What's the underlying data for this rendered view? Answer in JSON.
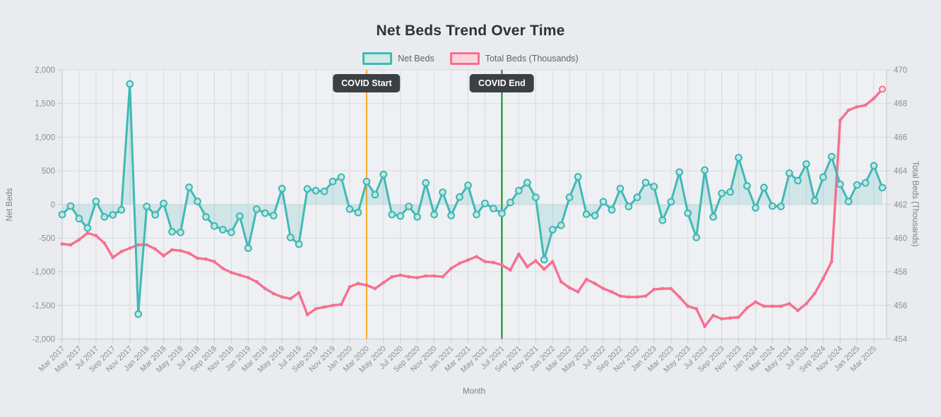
{
  "page": {
    "background": "#e9ebee",
    "plot_background": "#eef0f3",
    "grid_color": "#d7dade",
    "axis_color": "#c6cacd"
  },
  "chart_data": {
    "type": "line",
    "title": "Net Beds Trend Over Time",
    "xlabel": "Month",
    "legend_position": "top",
    "grid": true,
    "x": [
      "Mar 2017",
      "Apr 2017",
      "May 2017",
      "Jun 2017",
      "Jul 2017",
      "Aug 2017",
      "Sep 2017",
      "Oct 2017",
      "Nov 2017",
      "Dec 2017",
      "Jan 2018",
      "Feb 2018",
      "Mar 2018",
      "Apr 2018",
      "May 2018",
      "Jun 2018",
      "Jul 2018",
      "Aug 2018",
      "Sep 2018",
      "Oct 2018",
      "Nov 2018",
      "Dec 2018",
      "Jan 2019",
      "Feb 2019",
      "Mar 2019",
      "Apr 2019",
      "May 2019",
      "Jun 2019",
      "Jul 2019",
      "Aug 2019",
      "Sep 2019",
      "Oct 2019",
      "Nov 2019",
      "Dec 2019",
      "Jan 2020",
      "Feb 2020",
      "Mar 2020",
      "Apr 2020",
      "May 2020",
      "Jun 2020",
      "Jul 2020",
      "Aug 2020",
      "Sep 2020",
      "Oct 2020",
      "Nov 2020",
      "Dec 2020",
      "Jan 2021",
      "Feb 2021",
      "Mar 2021",
      "Apr 2021",
      "May 2021",
      "Jun 2021",
      "Jul 2021",
      "Aug 2021",
      "Sep 2021",
      "Oct 2021",
      "Nov 2021",
      "Dec 2021",
      "Jan 2022",
      "Feb 2022",
      "Mar 2022",
      "Apr 2022",
      "May 2022",
      "Jun 2022",
      "Jul 2022",
      "Aug 2022",
      "Sep 2022",
      "Oct 2022",
      "Nov 2022",
      "Dec 2022",
      "Jan 2023",
      "Feb 2023",
      "Mar 2023",
      "Apr 2023",
      "May 2023",
      "Jun 2023",
      "Jul 2023",
      "Aug 2023",
      "Sep 2023",
      "Oct 2023",
      "Nov 2023",
      "Dec 2023",
      "Jan 2024",
      "Feb 2024",
      "Mar 2024",
      "Apr 2024",
      "May 2024",
      "Jun 2024",
      "Jul 2024",
      "Aug 2024",
      "Sep 2024",
      "Oct 2024",
      "Nov 2024",
      "Dec 2024",
      "Jan 2025",
      "Feb 2025",
      "Mar 2025",
      "Apr 2025"
    ],
    "x_tick_every": 2,
    "series": [
      {
        "name": "Net Beds",
        "axis": "left",
        "color": "#41b9b5",
        "fill_to_zero": true,
        "fill_opacity": 0.18,
        "marker": "circle-open",
        "legend_fill": "#cfe9e7",
        "values": [
          -150,
          -25,
          -210,
          -350,
          45,
          -185,
          -155,
          -80,
          1790,
          -1630,
          -30,
          -155,
          15,
          -405,
          -415,
          255,
          45,
          -185,
          -320,
          -375,
          -415,
          -175,
          -650,
          -70,
          -130,
          -165,
          235,
          -490,
          -590,
          230,
          205,
          195,
          340,
          405,
          -70,
          -120,
          340,
          145,
          445,
          -150,
          -170,
          -30,
          -185,
          320,
          -150,
          180,
          -165,
          110,
          285,
          -150,
          15,
          -60,
          -135,
          30,
          205,
          325,
          105,
          -820,
          -375,
          -310,
          105,
          410,
          -145,
          -165,
          40,
          -80,
          235,
          -30,
          105,
          325,
          265,
          -235,
          40,
          480,
          -130,
          -490,
          510,
          -185,
          165,
          185,
          695,
          275,
          -50,
          250,
          -25,
          -30,
          465,
          355,
          600,
          55,
          405,
          710,
          300,
          45,
          290,
          320,
          575,
          250
        ]
      },
      {
        "name": "Total Beds (Thousands)",
        "axis": "right",
        "color": "#f76f8f",
        "fill_to_zero": false,
        "marker": "dot",
        "legend_fill": "#fbd4dc",
        "values": [
          459.65,
          459.6,
          459.9,
          460.3,
          460.15,
          459.7,
          458.85,
          459.2,
          459.4,
          459.6,
          459.6,
          459.35,
          458.95,
          459.3,
          459.25,
          459.1,
          458.8,
          458.75,
          458.6,
          458.2,
          457.95,
          457.8,
          457.65,
          457.4,
          457.0,
          456.7,
          456.5,
          456.4,
          456.75,
          455.45,
          455.8,
          455.9,
          456.0,
          456.05,
          457.1,
          457.3,
          457.2,
          457.0,
          457.35,
          457.7,
          457.8,
          457.7,
          457.65,
          457.75,
          457.75,
          457.7,
          458.2,
          458.5,
          458.7,
          458.9,
          458.6,
          458.55,
          458.4,
          458.1,
          459.05,
          458.3,
          458.65,
          458.15,
          458.6,
          457.4,
          457.05,
          456.8,
          457.55,
          457.3,
          457.0,
          456.8,
          456.55,
          456.5,
          456.5,
          456.55,
          456.95,
          457.0,
          457.0,
          456.5,
          455.95,
          455.8,
          454.75,
          455.4,
          455.2,
          455.25,
          455.3,
          455.85,
          456.2,
          455.95,
          455.95,
          455.95,
          456.1,
          455.7,
          456.1,
          456.7,
          457.6,
          458.6,
          467.0,
          467.6,
          467.8,
          467.9,
          468.3,
          468.85
        ]
      }
    ],
    "left_axis": {
      "label": "Net Beds",
      "min": -2000,
      "max": 2000,
      "tick_values": [
        2000,
        1500,
        1000,
        500,
        0,
        -500,
        -1000,
        -1500,
        -2000
      ],
      "tick_labels": [
        "2,000",
        "1,500",
        "1,000",
        "500",
        "0",
        "-500",
        "-1,000",
        "-1,500",
        "-2,000"
      ]
    },
    "right_axis": {
      "label": "Total Beds (Thousands)",
      "min": 454,
      "max": 470,
      "tick_values": [
        470,
        468,
        466,
        464,
        462,
        460,
        458,
        456,
        454
      ],
      "tick_labels": [
        "470",
        "468",
        "466",
        "464",
        "462",
        "460",
        "458",
        "456",
        "454"
      ]
    },
    "annotations": [
      {
        "label": "COVID Start",
        "month": "Mar 2020",
        "line_color": "#f9a825"
      },
      {
        "label": "COVID End",
        "month": "Jul 2021",
        "line_color": "#0e8c12"
      }
    ],
    "annotation_style": {
      "bg": "#3b4045",
      "text": "#ffffff"
    }
  }
}
